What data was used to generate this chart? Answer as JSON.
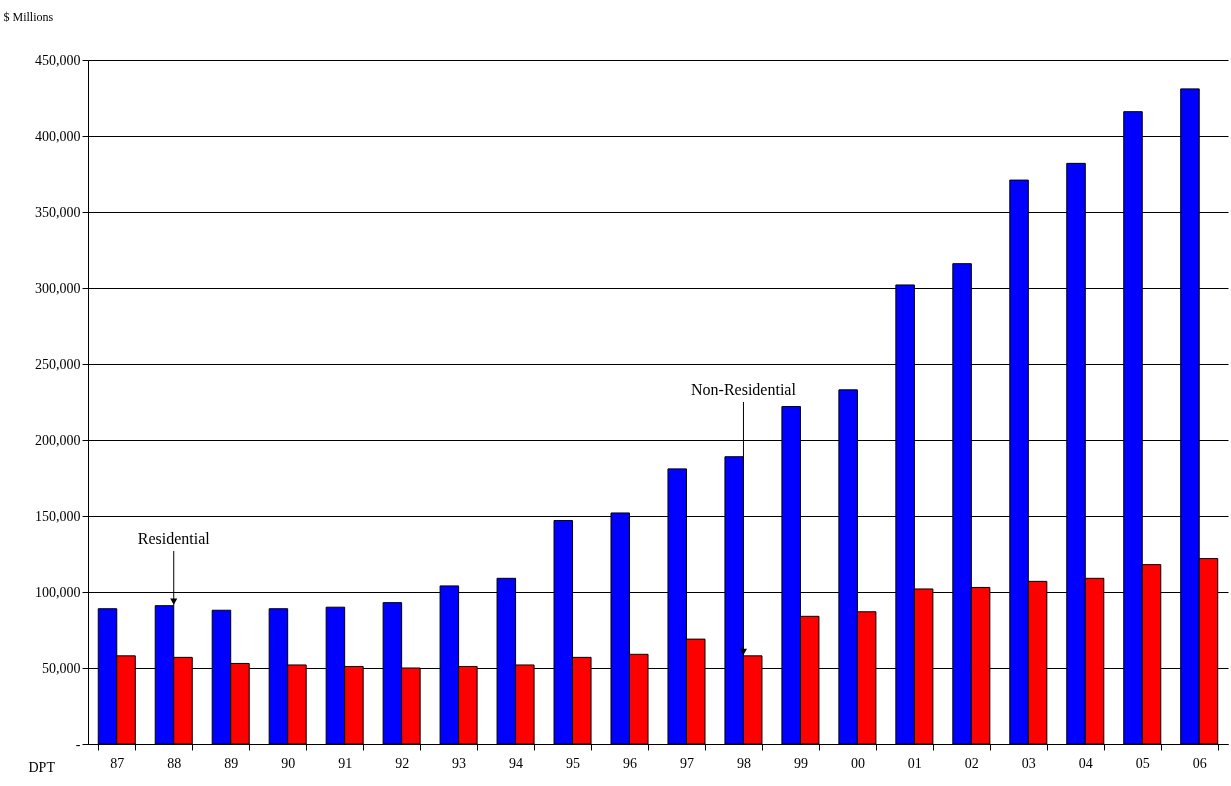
{
  "chart_data": {
    "type": "bar",
    "ylabel": "$ Millions",
    "xlabel": "DPT",
    "categories": [
      "87",
      "88",
      "89",
      "90",
      "91",
      "92",
      "93",
      "94",
      "95",
      "96",
      "97",
      "98",
      "99",
      "00",
      "01",
      "02",
      "03",
      "04",
      "05",
      "06"
    ],
    "series": [
      {
        "color": "#0000ff",
        "values": [
          89000,
          91000,
          88000,
          89000,
          90000,
          93000,
          104000,
          109000,
          147000,
          152000,
          181000,
          189000,
          222000,
          233000,
          302000,
          316000,
          371000,
          382000,
          416000,
          431000
        ]
      },
      {
        "color": "#ff0000",
        "values": [
          58000,
          57000,
          53000,
          52000,
          51000,
          50000,
          51000,
          52000,
          57000,
          59000,
          69000,
          58000,
          84000,
          87000,
          102000,
          103000,
          107000,
          109000,
          118000,
          122000
        ]
      }
    ],
    "ylim": [
      0,
      450000
    ],
    "yticks": [
      {
        "value": 0,
        "label": "-"
      },
      {
        "value": 50000,
        "label": "50,000"
      },
      {
        "value": 100000,
        "label": "100,000"
      },
      {
        "value": 150000,
        "label": "150,000"
      },
      {
        "value": 200000,
        "label": "200,000"
      },
      {
        "value": 250000,
        "label": "250,000"
      },
      {
        "value": 300000,
        "label": "300,000"
      },
      {
        "value": 350000,
        "label": "350,000"
      },
      {
        "value": 400000,
        "label": "400,000"
      },
      {
        "value": 450000,
        "label": "450,000"
      }
    ],
    "grid": "y",
    "legend": false,
    "annotations": [
      {
        "text": "Residential",
        "x": "88",
        "y": 91000
      },
      {
        "text": "Non-Residential",
        "x": "98",
        "y": 58000
      }
    ]
  }
}
